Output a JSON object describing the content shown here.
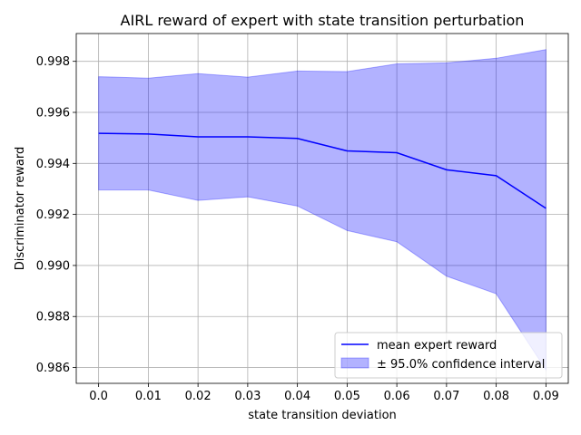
{
  "chart_data": {
    "type": "line",
    "title": "AIRL reward of expert with state transition perturbation",
    "xlabel": "state transition deviation",
    "ylabel": "Discriminator reward",
    "x": [
      0.0,
      0.01,
      0.02,
      0.03,
      0.04,
      0.05,
      0.06,
      0.07,
      0.08,
      0.09
    ],
    "x_tick_labels": [
      "0.0",
      "0.01",
      "0.02",
      "0.03",
      "0.04",
      "0.05",
      "0.06",
      "0.07",
      "0.08",
      "0.09"
    ],
    "y_ticks": [
      0.986,
      0.988,
      0.99,
      0.992,
      0.994,
      0.996,
      0.998
    ],
    "y_tick_labels": [
      "0.986",
      "0.988",
      "0.990",
      "0.992",
      "0.994",
      "0.996",
      "0.998"
    ],
    "xlim": [
      -0.0045,
      0.0945
    ],
    "ylim": [
      0.98538,
      0.99909
    ],
    "grid": true,
    "legend_position": "lower-right",
    "series": [
      {
        "name": "mean expert reward",
        "color": "#0000ff",
        "values": [
          0.99518,
          0.99515,
          0.99504,
          0.99504,
          0.99498,
          0.99449,
          0.99442,
          0.99375,
          0.99352,
          0.99224
        ]
      }
    ],
    "band": {
      "name": "± 95.0% confidence interval",
      "color": "#0000ff",
      "fill_opacity": 0.3,
      "lower": [
        0.99296,
        0.99296,
        0.99255,
        0.99269,
        0.99233,
        0.99137,
        0.99093,
        0.98958,
        0.98889,
        0.98591
      ],
      "upper": [
        0.9974,
        0.99734,
        0.99752,
        0.99738,
        0.99762,
        0.9976,
        0.9979,
        0.99794,
        0.99812,
        0.99846
      ]
    }
  }
}
